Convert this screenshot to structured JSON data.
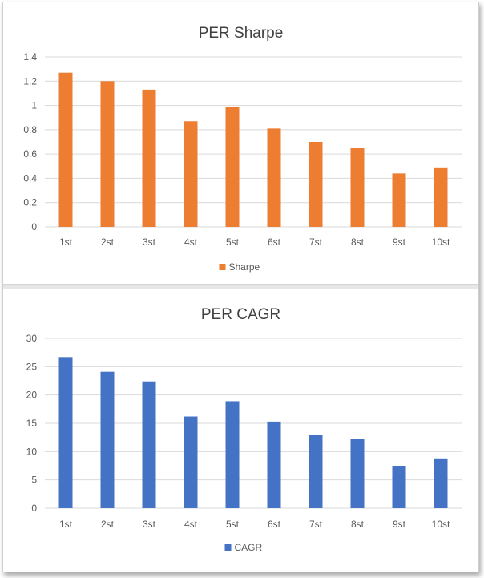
{
  "chart_data": [
    {
      "type": "bar",
      "title": "PER Sharpe",
      "categories": [
        "1st",
        "2st",
        "3st",
        "4st",
        "5st",
        "6st",
        "7st",
        "8st",
        "9st",
        "10st"
      ],
      "series": [
        {
          "name": "Sharpe",
          "values": [
            1.27,
            1.2,
            1.13,
            0.87,
            0.99,
            0.81,
            0.7,
            0.65,
            0.44,
            0.49
          ],
          "color": "#ED7D31"
        }
      ],
      "yticks": [
        "0",
        "0.2",
        "0.4",
        "0.6",
        "0.8",
        "1",
        "1.2",
        "1.4"
      ],
      "ylim": [
        0,
        1.4
      ],
      "grid": true,
      "legend": "bottom"
    },
    {
      "type": "bar",
      "title": "PER CAGR",
      "categories": [
        "1st",
        "2st",
        "3st",
        "4st",
        "5st",
        "6st",
        "7st",
        "8st",
        "9st",
        "10st"
      ],
      "series": [
        {
          "name": "CAGR",
          "values": [
            26.7,
            24.1,
            22.4,
            16.2,
            18.9,
            15.3,
            13.0,
            12.2,
            7.5,
            8.8
          ],
          "color": "#4472C4"
        }
      ],
      "yticks": [
        "0",
        "5",
        "10",
        "15",
        "20",
        "25",
        "30"
      ],
      "ylim": [
        0,
        30
      ],
      "grid": true,
      "legend": "bottom"
    }
  ]
}
